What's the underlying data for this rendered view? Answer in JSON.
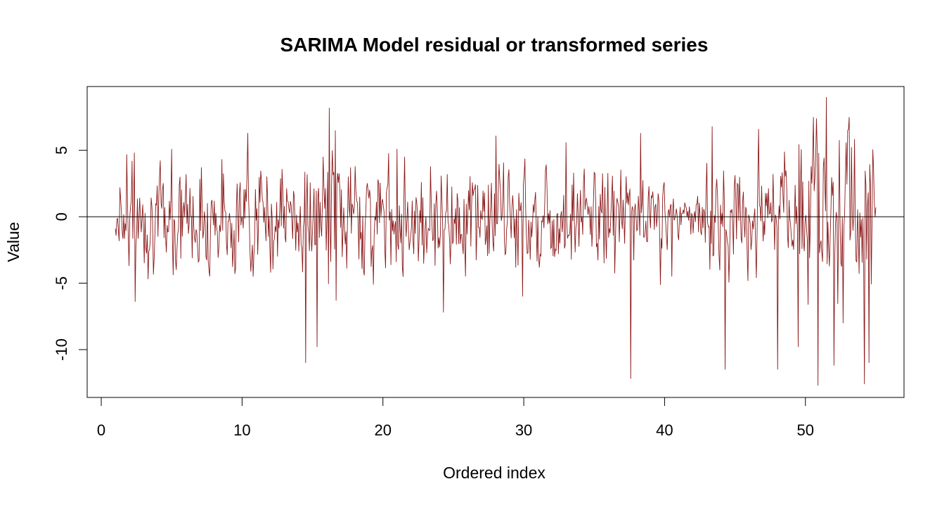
{
  "chart_data": {
    "type": "line",
    "title": "SARIMA Model residual or transformed series",
    "xlabel": "Ordered index",
    "ylabel": "Value",
    "xlim": [
      -1,
      57
    ],
    "ylim": [
      -13.6,
      9.8
    ],
    "x_ticks": [
      0,
      10,
      20,
      30,
      40,
      50
    ],
    "y_ticks": [
      5,
      0,
      -5,
      -10
    ],
    "x_tick_labels": [
      "0",
      "10",
      "20",
      "30",
      "40",
      "50"
    ],
    "y_tick_labels": [
      "5",
      "0",
      "-5",
      "-10"
    ],
    "reference_line": {
      "y": 0,
      "color": "#000000"
    },
    "grid": false,
    "legend": "none",
    "series": [
      {
        "color": "#8b1a1a",
        "x_start": 1.0,
        "x_end": 55.0,
        "n_points": 1000,
        "y_min": -12.7,
        "y_max": 9.0,
        "anchors": [
          [
            1.0,
            -0.9
          ],
          [
            1.3,
            2.2
          ],
          [
            1.8,
            4.7
          ],
          [
            2.2,
            4.2
          ],
          [
            2.4,
            -6.4
          ],
          [
            3.0,
            -1.0
          ],
          [
            4.0,
            -1.5
          ],
          [
            5.0,
            5.1
          ],
          [
            5.3,
            -4.0
          ],
          [
            6.0,
            3.2
          ],
          [
            8.0,
            1.2
          ],
          [
            9.5,
            -4.3
          ],
          [
            10.4,
            6.3
          ],
          [
            12.0,
            -4.2
          ],
          [
            14.5,
            -11.0
          ],
          [
            15.3,
            -9.8
          ],
          [
            16.2,
            8.2
          ],
          [
            16.6,
            6.5
          ],
          [
            18.0,
            3.8
          ],
          [
            19.3,
            -5.1
          ],
          [
            21.0,
            5.1
          ],
          [
            24.3,
            -7.2
          ],
          [
            28.0,
            6.1
          ],
          [
            29.9,
            -6.0
          ],
          [
            33.0,
            5.6
          ],
          [
            37.6,
            -12.2
          ],
          [
            38.3,
            6.3
          ],
          [
            40.5,
            -4.5
          ],
          [
            43.4,
            6.8
          ],
          [
            44.3,
            -11.5
          ],
          [
            46.7,
            6.6
          ],
          [
            48.0,
            -11.5
          ],
          [
            49.5,
            -9.8
          ],
          [
            50.8,
            7.4
          ],
          [
            50.9,
            -12.7
          ],
          [
            51.5,
            9.0
          ],
          [
            52.0,
            -11.2
          ],
          [
            53.0,
            6.5
          ],
          [
            54.2,
            -12.6
          ],
          [
            54.5,
            -11.0
          ],
          [
            55.0,
            0.7
          ]
        ]
      }
    ]
  }
}
